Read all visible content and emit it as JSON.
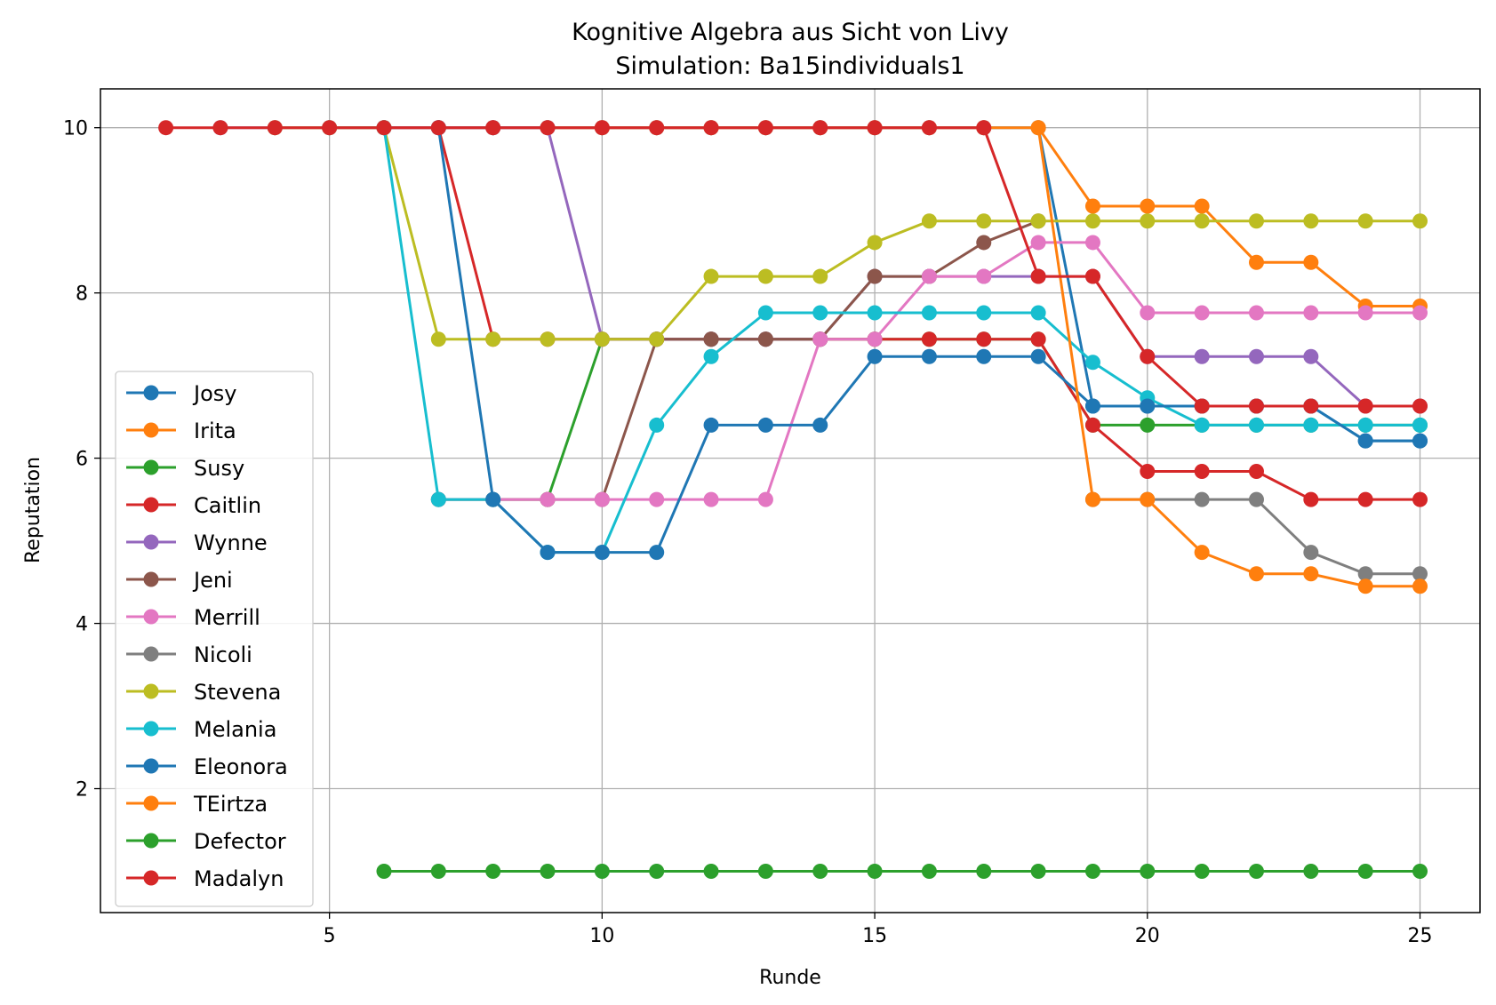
{
  "chart_data": {
    "type": "line",
    "title": "Kognitive Algebra aus Sicht von Livy",
    "subtitle": "Simulation: Ba15individuals1",
    "xlabel": "Runde",
    "ylabel": "Reputation",
    "xlim": [
      0.8,
      26.1
    ],
    "ylim": [
      0.5,
      10.47
    ],
    "xticks": [
      5,
      10,
      15,
      20,
      25
    ],
    "yticks": [
      2,
      4,
      6,
      8,
      10
    ],
    "grid": true,
    "legend_position": "lower left",
    "series": [
      {
        "name": "Josy",
        "color": "#1f77b4",
        "x": [
          5,
          6,
          7,
          8,
          9,
          10,
          11,
          12,
          13,
          14,
          15,
          16,
          17,
          18,
          19,
          20,
          21,
          22,
          23,
          24,
          25
        ],
        "y": [
          10,
          10,
          10,
          10,
          10,
          10,
          10,
          10,
          10,
          10,
          10,
          10,
          10,
          10,
          6.63,
          6.63,
          6.63,
          6.63,
          6.63,
          6.21,
          6.21
        ]
      },
      {
        "name": "Irita",
        "color": "#ff7f0e",
        "x": [
          6,
          7,
          8,
          9,
          10,
          11,
          12,
          13,
          14,
          15,
          16,
          17,
          18,
          19,
          20,
          21,
          22,
          23,
          24,
          25
        ],
        "y": [
          10,
          10,
          10,
          10,
          10,
          10,
          10,
          10,
          10,
          10,
          10,
          10,
          10,
          9.05,
          9.05,
          9.05,
          8.37,
          8.37,
          7.84,
          7.84
        ]
      },
      {
        "name": "Susy",
        "color": "#2ca02c",
        "x": [
          7,
          8,
          9,
          10,
          11,
          12,
          13,
          14,
          15,
          16,
          17,
          18,
          19,
          20,
          21,
          22,
          23,
          24,
          25
        ],
        "y": [
          5.5,
          5.5,
          5.5,
          7.44,
          7.44,
          7.44,
          7.44,
          7.44,
          7.44,
          7.44,
          7.44,
          7.44,
          6.4,
          6.4,
          6.4,
          6.4,
          6.4,
          6.4,
          6.4
        ]
      },
      {
        "name": "Caitlin",
        "color": "#d62728",
        "x": [
          7,
          8,
          9,
          10,
          11,
          12,
          13,
          14,
          15,
          16,
          17,
          18,
          19,
          20,
          21,
          22,
          23,
          24,
          25
        ],
        "y": [
          10,
          7.44,
          7.44,
          7.44,
          7.44,
          7.44,
          7.44,
          7.44,
          7.44,
          7.44,
          7.44,
          7.44,
          6.4,
          5.84,
          5.84,
          5.84,
          5.5,
          5.5,
          5.5
        ]
      },
      {
        "name": "Wynne",
        "color": "#9467bd",
        "x": [
          3,
          4,
          5,
          6,
          7,
          8,
          9,
          10,
          11,
          12,
          13,
          14,
          15,
          16,
          17,
          18,
          19,
          20,
          21,
          22,
          23,
          24,
          25
        ],
        "y": [
          10,
          10,
          10,
          10,
          10,
          10,
          10,
          7.44,
          7.44,
          7.44,
          7.44,
          7.44,
          8.2,
          8.2,
          8.2,
          8.2,
          8.2,
          7.23,
          7.23,
          7.23,
          7.23,
          6.63,
          6.63
        ]
      },
      {
        "name": "Jeni",
        "color": "#8c564b",
        "x": [
          7,
          8,
          9,
          10,
          11,
          12,
          13,
          14,
          15,
          16,
          17,
          18
        ],
        "y": [
          5.5,
          5.5,
          5.5,
          5.5,
          7.44,
          7.44,
          7.44,
          7.44,
          8.2,
          8.2,
          8.61,
          8.87
        ]
      },
      {
        "name": "Merrill",
        "color": "#e377c2",
        "x": [
          7,
          8,
          9,
          10,
          11,
          12,
          13,
          14,
          15,
          16,
          17,
          18,
          19,
          20,
          21,
          22,
          23,
          24,
          25
        ],
        "y": [
          5.5,
          5.5,
          5.5,
          5.5,
          5.5,
          5.5,
          5.5,
          7.44,
          7.44,
          8.2,
          8.2,
          8.61,
          8.61,
          7.76,
          7.76,
          7.76,
          7.76,
          7.76,
          7.76
        ]
      },
      {
        "name": "Nicoli",
        "color": "#7f7f7f",
        "x": [
          19,
          20,
          21,
          22,
          23,
          24,
          25
        ],
        "y": [
          5.5,
          5.5,
          5.5,
          5.5,
          4.86,
          4.6,
          4.6
        ]
      },
      {
        "name": "Stevena",
        "color": "#bcbd22",
        "x": [
          4,
          5,
          6,
          7,
          8,
          9,
          10,
          11,
          12,
          13,
          14,
          15,
          16,
          17,
          18,
          19,
          20,
          21,
          22,
          23,
          24,
          25
        ],
        "y": [
          10,
          10,
          10,
          7.44,
          7.44,
          7.44,
          7.44,
          7.44,
          8.2,
          8.2,
          8.2,
          8.61,
          8.87,
          8.87,
          8.87,
          8.87,
          8.87,
          8.87,
          8.87,
          8.87,
          8.87,
          8.87
        ]
      },
      {
        "name": "Melania",
        "color": "#17becf",
        "x": [
          6,
          7,
          8,
          9,
          10,
          11,
          12,
          13,
          14,
          15,
          16,
          17,
          18,
          19,
          20,
          21,
          22,
          23,
          24,
          25
        ],
        "y": [
          10,
          5.5,
          5.5,
          4.86,
          4.86,
          6.4,
          7.23,
          7.76,
          7.76,
          7.76,
          7.76,
          7.76,
          7.76,
          7.16,
          6.73,
          6.4,
          6.4,
          6.4,
          6.4,
          6.4
        ]
      },
      {
        "name": "Eleonora",
        "color": "#1f77b4",
        "x": [
          7,
          8,
          9,
          10,
          11,
          12,
          13,
          14,
          15,
          16,
          17,
          18,
          19,
          20,
          21,
          22,
          23,
          24,
          25
        ],
        "y": [
          10,
          5.5,
          4.86,
          4.86,
          4.86,
          6.4,
          6.4,
          6.4,
          7.23,
          7.23,
          7.23,
          7.23,
          6.63,
          6.63,
          6.63,
          6.63,
          6.63,
          6.21,
          6.21
        ]
      },
      {
        "name": "TEirtza",
        "color": "#ff7f0e",
        "x": [
          18,
          19,
          20,
          21,
          22,
          23,
          24,
          25
        ],
        "y": [
          10,
          5.5,
          5.5,
          4.86,
          4.6,
          4.6,
          4.45,
          4.45
        ]
      },
      {
        "name": "Defector",
        "color": "#2ca02c",
        "x": [
          6,
          7,
          8,
          9,
          10,
          11,
          12,
          13,
          14,
          15,
          16,
          17,
          18,
          19,
          20,
          21,
          22,
          23,
          24,
          25
        ],
        "y": [
          1,
          1,
          1,
          1,
          1,
          1,
          1,
          1,
          1,
          1,
          1,
          1,
          1,
          1,
          1,
          1,
          1,
          1,
          1,
          1
        ]
      },
      {
        "name": "Madalyn",
        "color": "#d62728",
        "x": [
          2,
          3,
          4,
          5,
          6,
          7,
          8,
          9,
          10,
          11,
          12,
          13,
          14,
          15,
          16,
          17,
          18,
          19,
          20,
          21,
          22,
          23,
          24,
          25
        ],
        "y": [
          10,
          10,
          10,
          10,
          10,
          10,
          10,
          10,
          10,
          10,
          10,
          10,
          10,
          10,
          10,
          10,
          8.2,
          8.2,
          7.23,
          6.63,
          6.63,
          6.63,
          6.63,
          6.63
        ]
      }
    ]
  }
}
